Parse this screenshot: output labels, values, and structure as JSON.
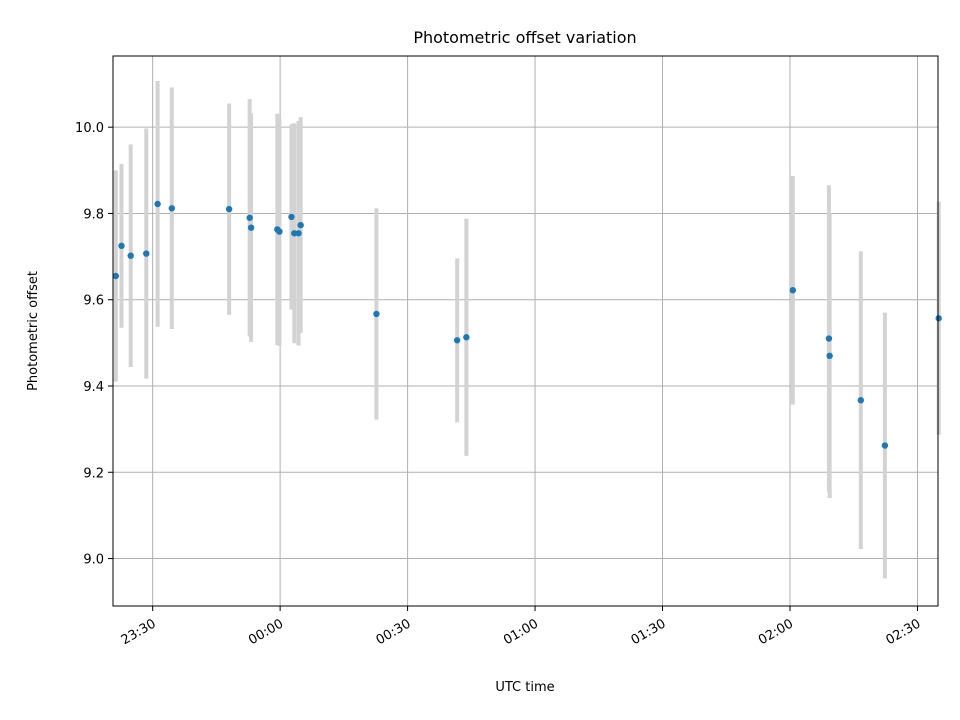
{
  "chart_data": {
    "type": "scatter",
    "title": "Photometric offset variation",
    "xlabel": "UTC time",
    "ylabel": "Photometric offset",
    "x_ticks": [
      "23:30",
      "00:00",
      "00:30",
      "01:00",
      "01:30",
      "02:00",
      "02:30"
    ],
    "y_ticks": [
      "9.0",
      "9.2",
      "9.4",
      "9.6",
      "9.8",
      "10.0"
    ],
    "xlim": [
      "23:20:40",
      "02:34:50"
    ],
    "ylim": [
      8.89,
      10.165
    ],
    "grid": true,
    "point_color": "#1f77b4",
    "errorbar_color": "#d3d3d3",
    "points": [
      {
        "x": "23:21:20",
        "y": 9.655,
        "err": 0.245
      },
      {
        "x": "23:22:40",
        "y": 9.725,
        "err": 0.19
      },
      {
        "x": "23:24:50",
        "y": 9.702,
        "err": 0.258
      },
      {
        "x": "23:28:30",
        "y": 9.707,
        "err": 0.29
      },
      {
        "x": "23:31:10",
        "y": 9.822,
        "err": 0.285
      },
      {
        "x": "23:34:30",
        "y": 9.812,
        "err": 0.28
      },
      {
        "x": "23:48:00",
        "y": 9.81,
        "err": 0.245
      },
      {
        "x": "23:52:50",
        "y": 9.79,
        "err": 0.275
      },
      {
        "x": "23:53:10",
        "y": 9.767,
        "err": 0.265
      },
      {
        "x": "23:59:20",
        "y": 9.763,
        "err": 0.268
      },
      {
        "x": "23:59:50",
        "y": 9.758,
        "err": 0.265
      },
      {
        "x": "00:02:40",
        "y": 9.792,
        "err": 0.215
      },
      {
        "x": "00:03:20",
        "y": 9.754,
        "err": 0.255
      },
      {
        "x": "00:04:20",
        "y": 9.754,
        "err": 0.26
      },
      {
        "x": "00:04:50",
        "y": 9.773,
        "err": 0.25
      },
      {
        "x": "00:22:40",
        "y": 9.567,
        "err": 0.245
      },
      {
        "x": "00:41:40",
        "y": 9.506,
        "err": 0.19
      },
      {
        "x": "00:43:50",
        "y": 9.513,
        "err": 0.275
      },
      {
        "x": "02:00:40",
        "y": 9.622,
        "err": 0.265
      },
      {
        "x": "02:09:10",
        "y": 9.51,
        "err": 0.355
      },
      {
        "x": "02:09:20",
        "y": 9.47,
        "err": 0.33
      },
      {
        "x": "02:16:40",
        "y": 9.367,
        "err": 0.345
      },
      {
        "x": "02:22:20",
        "y": 9.262,
        "err": 0.308
      },
      {
        "x": "02:35:00",
        "y": 9.557,
        "err": 0.27
      }
    ]
  }
}
